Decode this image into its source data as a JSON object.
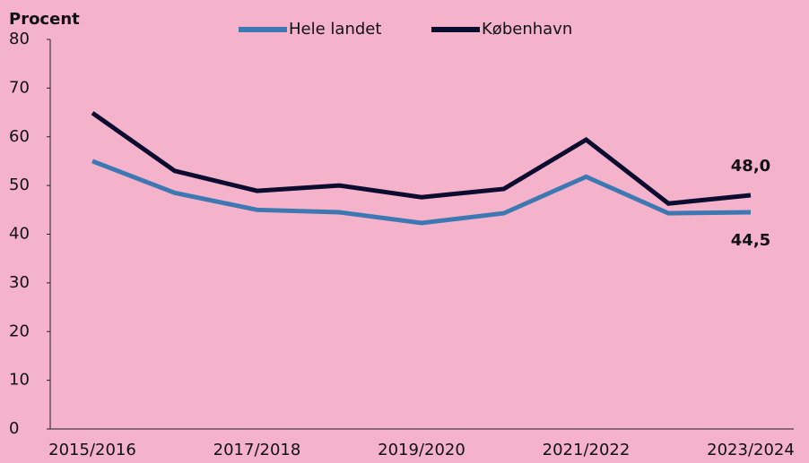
{
  "chart_data": {
    "type": "line",
    "y_label": "Procent",
    "categories": [
      "2015/2016",
      null,
      "2017/2018",
      null,
      "2019/2020",
      null,
      "2021/2022",
      null,
      "2023/2024"
    ],
    "series": [
      {
        "name": "Hele landet",
        "color": "#3e78b2",
        "values": [
          55.0,
          48.5,
          45.0,
          44.5,
          42.3,
          44.3,
          51.8,
          44.3,
          44.5
        ],
        "value_labels": [
          null,
          null,
          null,
          null,
          null,
          null,
          null,
          null,
          "44,5"
        ]
      },
      {
        "name": "København",
        "color": "#0c0c30",
        "values": [
          64.9,
          53.0,
          48.9,
          50.0,
          47.6,
          49.3,
          59.4,
          46.3,
          48.0
        ],
        "value_labels": [
          null,
          null,
          null,
          null,
          null,
          null,
          null,
          null,
          "48,0"
        ]
      }
    ],
    "ylim": [
      0,
      80
    ],
    "yticks": [
      0,
      10,
      20,
      30,
      40,
      50,
      60,
      70,
      80
    ],
    "grid": false
  }
}
